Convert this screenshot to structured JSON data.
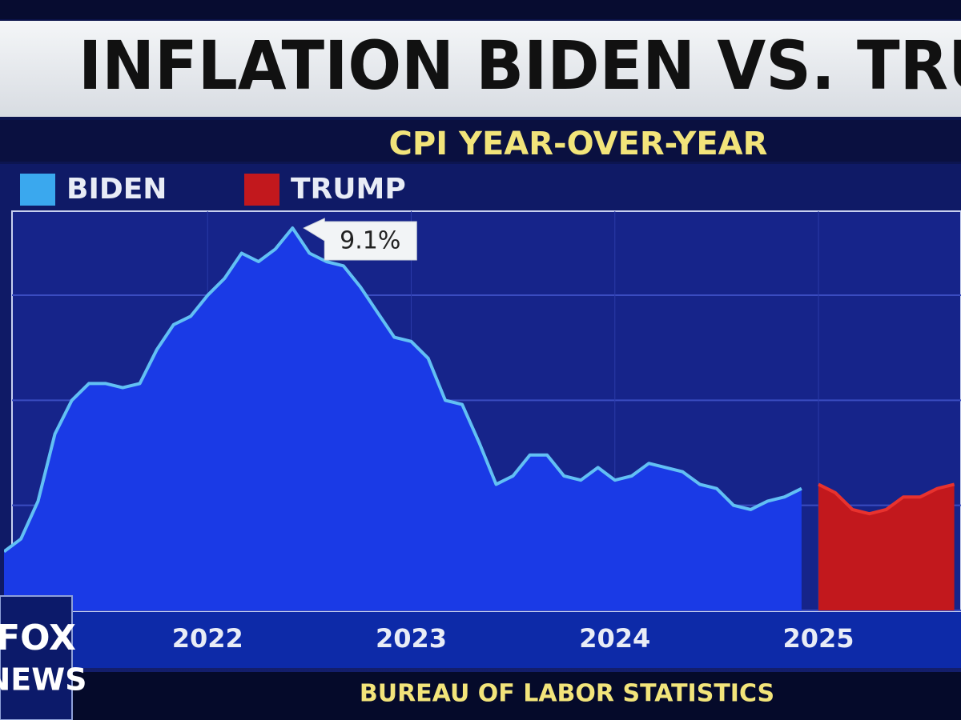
{
  "chart_data": {
    "type": "area",
    "title": "INFLATION BIDEN VS. TRU",
    "subtitle": "CPI YEAR-OVER-YEAR",
    "source": "BUREAU OF LABOR STATISTICS",
    "logo": {
      "top": "FOX",
      "bottom": "NEWS"
    },
    "xlim": [
      2021,
      2025.7
    ],
    "xticks": [
      2022,
      2023,
      2024,
      2025
    ],
    "ylim": [
      0,
      9.5
    ],
    "yticks": [
      0,
      2.5,
      5,
      7.5
    ],
    "grid": true,
    "series": [
      {
        "name": "BIDEN",
        "color": "#1a3ae6",
        "line_color": "#62c0f4",
        "x": [
          2021,
          2021.083,
          2021.167,
          2021.25,
          2021.333,
          2021.417,
          2021.5,
          2021.583,
          2021.667,
          2021.75,
          2021.833,
          2021.917,
          2022,
          2022.083,
          2022.167,
          2022.25,
          2022.333,
          2022.417,
          2022.5,
          2022.583,
          2022.667,
          2022.75,
          2022.833,
          2022.917,
          2023,
          2023.083,
          2023.167,
          2023.25,
          2023.333,
          2023.417,
          2023.5,
          2023.583,
          2023.667,
          2023.75,
          2023.833,
          2023.917,
          2024,
          2024.083,
          2024.167,
          2024.25,
          2024.333,
          2024.417,
          2024.5,
          2024.583,
          2024.667,
          2024.75,
          2024.833,
          2024.917
        ],
        "values": [
          1.4,
          1.7,
          2.6,
          4.2,
          5.0,
          5.4,
          5.4,
          5.3,
          5.4,
          6.2,
          6.8,
          7.0,
          7.5,
          7.9,
          8.5,
          8.3,
          8.6,
          9.1,
          8.5,
          8.3,
          8.2,
          7.7,
          7.1,
          6.5,
          6.4,
          6.0,
          5.0,
          4.9,
          4.0,
          3.0,
          3.2,
          3.7,
          3.7,
          3.2,
          3.1,
          3.4,
          3.1,
          3.2,
          3.5,
          3.4,
          3.3,
          3.0,
          2.9,
          2.5,
          2.4,
          2.6,
          2.7,
          2.9
        ]
      },
      {
        "name": "TRUMP",
        "color": "#c2181d",
        "line_color": "#e8322e",
        "x": [
          2025,
          2025.083,
          2025.167,
          2025.25,
          2025.333,
          2025.417,
          2025.5,
          2025.583,
          2025.667
        ],
        "values": [
          3.0,
          2.8,
          2.4,
          2.3,
          2.4,
          2.7,
          2.7,
          2.9,
          3.0
        ]
      }
    ],
    "annotation": {
      "x": 2022.417,
      "value": 9.1,
      "label": "9.1%"
    }
  }
}
